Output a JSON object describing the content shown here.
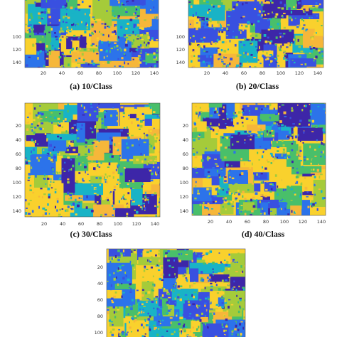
{
  "panels": [
    {
      "caption": "(a) 10/Class",
      "xticks": [
        20,
        40,
        60,
        80,
        100,
        120,
        140
      ],
      "yticks": [
        100,
        120,
        140
      ]
    },
    {
      "caption": "(b) 20/Class",
      "xticks": [
        20,
        40,
        60,
        80,
        100,
        120,
        140
      ],
      "yticks": [
        100,
        120,
        140
      ]
    },
    {
      "caption": "(c) 30/Class",
      "xticks": [
        20,
        40,
        60,
        80,
        100,
        120,
        140
      ],
      "yticks": [
        20,
        40,
        60,
        80,
        100,
        120,
        140
      ]
    },
    {
      "caption": "(d) 40/Class",
      "xticks": [
        20,
        40,
        60,
        80,
        100,
        120,
        140
      ],
      "yticks": [
        20,
        40,
        60,
        80,
        100,
        120,
        140
      ]
    },
    {
      "yticks": [
        20,
        40,
        60,
        80,
        100
      ]
    }
  ]
}
